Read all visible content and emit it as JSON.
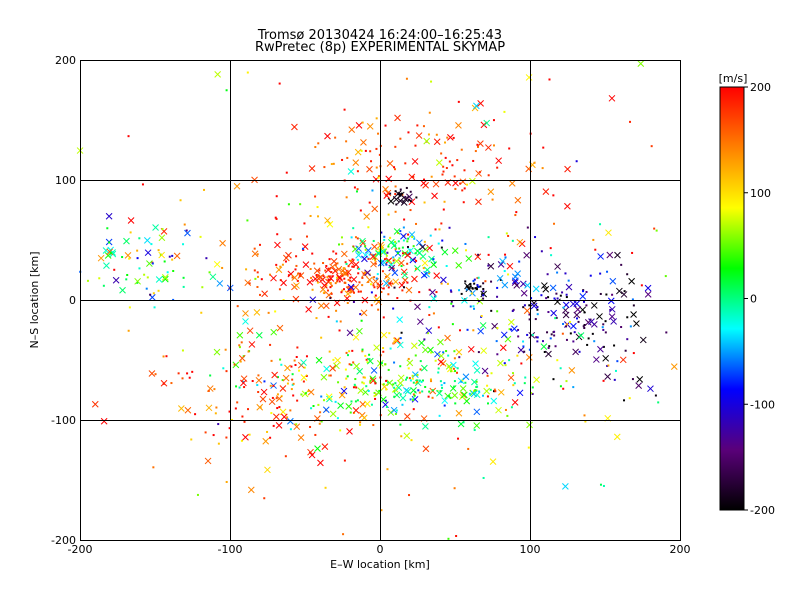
{
  "chart_data": {
    "type": "scatter",
    "title": "Tromsø 20130424 16:24:00–16:25:43",
    "subtitle": "RwPretec (8p) EXPERIMENTAL SKYMAP",
    "xlabel": "E–W location [km]",
    "ylabel": "N–S location [km]",
    "xlim": [
      -200,
      200
    ],
    "ylim": [
      -200,
      200
    ],
    "xticks": [
      "-200",
      "-100",
      "0",
      "100",
      "200"
    ],
    "yticks": [
      "-200",
      "-100",
      "0",
      "100",
      "200"
    ],
    "grid": true,
    "colorbar": {
      "label": "[m/s]",
      "range": [
        -200,
        200
      ],
      "ticks": [
        "-200",
        "-100",
        "0",
        "100",
        "200"
      ],
      "placement": "right",
      "colors": [
        "#000000",
        "#5a007a",
        "#0000ff",
        "#00ffff",
        "#00ff00",
        "#ffff00",
        "#ff8000",
        "#ff0000"
      ]
    },
    "clusters": [
      {
        "name": "east-black",
        "cx": 135,
        "cy": -18,
        "sx": 28,
        "sy": 28,
        "n": 160,
        "vmean": -150,
        "vsd": 60
      },
      {
        "name": "center-red",
        "cx": -25,
        "cy": 20,
        "sx": 30,
        "sy": 12,
        "n": 230,
        "vmean": 175,
        "vsd": 30
      },
      {
        "name": "north-red-band",
        "cx": 25,
        "cy": 110,
        "sx": 45,
        "sy": 22,
        "n": 140,
        "vmean": 175,
        "vsd": 35
      },
      {
        "name": "center-cyan",
        "cx": 10,
        "cy": 42,
        "sx": 15,
        "sy": 9,
        "n": 90,
        "vmean": 5,
        "vsd": 60
      },
      {
        "name": "south-mixed",
        "cx": 20,
        "cy": -65,
        "sx": 55,
        "sy": 22,
        "n": 240,
        "vmean": 50,
        "vsd": 70
      },
      {
        "name": "south-green",
        "cx": 30,
        "cy": -72,
        "sx": 25,
        "sy": 10,
        "n": 80,
        "vmean": 0,
        "vsd": 35
      },
      {
        "name": "southwest-red",
        "cx": -70,
        "cy": -80,
        "sx": 40,
        "sy": 28,
        "n": 130,
        "vmean": 170,
        "vsd": 40
      },
      {
        "name": "west-mixed",
        "cx": -160,
        "cy": 30,
        "sx": 25,
        "sy": 18,
        "n": 70,
        "vmean": 20,
        "vsd": 90
      },
      {
        "name": "purple-north",
        "cx": 14,
        "cy": 87,
        "sx": 4,
        "sy": 3,
        "n": 25,
        "vmean": -185,
        "vsd": 10
      },
      {
        "name": "black-spot",
        "cx": 62,
        "cy": 10,
        "sx": 4,
        "sy": 3,
        "n": 20,
        "vmean": -200,
        "vsd": 5
      },
      {
        "name": "center-blue",
        "cx": 60,
        "cy": 10,
        "sx": 45,
        "sy": 25,
        "n": 120,
        "vmean": -80,
        "vsd": 60
      },
      {
        "name": "scatter-wide",
        "cx": 0,
        "cy": 0,
        "sx": 110,
        "sy": 90,
        "n": 220,
        "vmean": 120,
        "vsd": 90
      }
    ]
  }
}
